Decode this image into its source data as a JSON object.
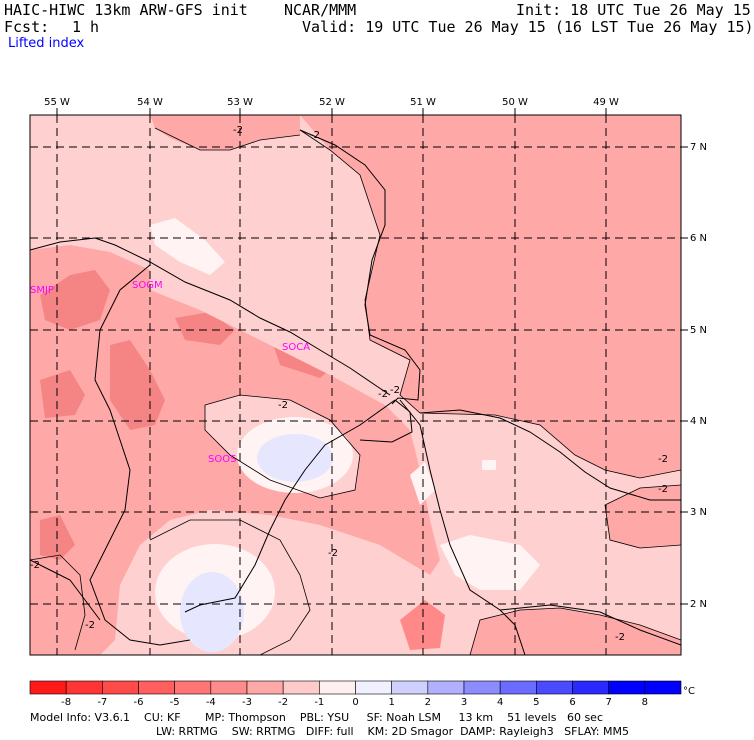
{
  "header": {
    "model_line": "HAIC-HIWC 13km ARW-GFS init    NCAR/MMM",
    "fcst_label": "Fcst:",
    "fcst_value": "1 h",
    "init_text": "Init: 18 UTC Tue 26 May 15",
    "valid_text": "Valid: 19 UTC Tue 26 May 15 (16 LST Tue 26 May 15)",
    "field_name": "Lifted index"
  },
  "map": {
    "lon_labels": [
      "55 W",
      "54 W",
      "53 W",
      "52 W",
      "51 W",
      "50 W",
      "49 W"
    ],
    "lat_labels": [
      "7 N",
      "6 N",
      "5 N",
      "4 N",
      "3 N",
      "2 N"
    ],
    "stations": [
      "SMJP",
      "SOGM",
      "SOCA",
      "SOOS"
    ],
    "contour_labels": [
      "-2",
      "-2",
      "-2",
      "-2",
      "-2",
      "-2",
      "-2",
      "-2",
      "-2",
      "-2",
      "-2"
    ],
    "colors": {
      "land_neg1": "#ffd0d0",
      "mid_neg2": "#ffaaaa",
      "deep_neg3": "#f58585",
      "neutral": "#fff0f0",
      "positive": "#e6e6ff"
    }
  },
  "colorbar": {
    "tick_labels": [
      "-8",
      "-7",
      "-6",
      "-5",
      "-4",
      "-3",
      "-2",
      "-1",
      "0",
      "1",
      "2",
      "3",
      "4",
      "5",
      "6",
      "7",
      "8"
    ],
    "unit": "°C",
    "colors": [
      "#ff1a1a",
      "#ff3535",
      "#ff4a4a",
      "#ff5f5f",
      "#ff7575",
      "#ff8c8c",
      "#ffa8a8",
      "#ffcaca",
      "#fff0f0",
      "#f0f0ff",
      "#d0d0ff",
      "#b0b0ff",
      "#8c8cff",
      "#6b6bff",
      "#4a4aff",
      "#2a2aff",
      "#0000ff"
    ]
  },
  "footer": {
    "line1": "Model Info: V3.6.1    CU: KF       MP: Thompson    PBL: YSU     SF: Noah LSM     13 km    51 levels   60 sec",
    "line2": "LW: RRTMG    SW: RRTMG   DIFF: full    KM: 2D Smagor  DAMP: Rayleigh3   SFLAY: MM5"
  }
}
